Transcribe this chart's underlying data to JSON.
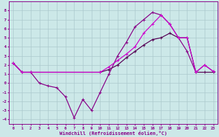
{
  "xlabel": "Windchill (Refroidissement éolien,°C)",
  "bg_color": "#cce8e8",
  "grid_color": "#aac8cc",
  "ylim": [
    -4.5,
    9.0
  ],
  "xlim": [
    -0.5,
    23.5
  ],
  "yticks": [
    -4,
    -3,
    -2,
    -1,
    0,
    1,
    2,
    3,
    4,
    5,
    6,
    7,
    8
  ],
  "curve1_color": "#880088",
  "curve2_color": "#cc00cc",
  "curve3_color": "#550055",
  "curve1_x": [
    0,
    1,
    2,
    3,
    4,
    5,
    6,
    7,
    8,
    9,
    10,
    11,
    12,
    13,
    14,
    15,
    16,
    17,
    18,
    19,
    20,
    21,
    22,
    23
  ],
  "curve1_y": [
    2.2,
    1.2,
    1.2,
    0.0,
    -0.3,
    -0.5,
    -1.5,
    -3.8,
    -1.8,
    -3.0,
    -1.0,
    1.0,
    3.0,
    4.5,
    6.2,
    7.0,
    7.8,
    7.5,
    6.5,
    5.0,
    3.5,
    1.2,
    2.0,
    1.3
  ],
  "curve2_x": [
    0,
    1,
    2,
    10,
    11,
    12,
    13,
    14,
    15,
    16,
    17,
    18,
    19,
    20,
    21,
    22,
    23
  ],
  "curve2_y": [
    2.2,
    1.2,
    1.2,
    1.2,
    1.8,
    2.5,
    3.2,
    4.0,
    5.5,
    6.5,
    7.5,
    6.5,
    5.0,
    5.0,
    1.2,
    2.0,
    1.3
  ],
  "curve3_x": [
    0,
    1,
    2,
    10,
    11,
    12,
    13,
    14,
    15,
    16,
    17,
    18,
    19,
    20,
    21,
    22,
    23
  ],
  "curve3_y": [
    2.2,
    1.2,
    1.2,
    1.2,
    1.5,
    2.0,
    2.8,
    3.5,
    4.2,
    4.8,
    5.0,
    5.5,
    5.0,
    5.0,
    1.2,
    1.2,
    1.2
  ]
}
